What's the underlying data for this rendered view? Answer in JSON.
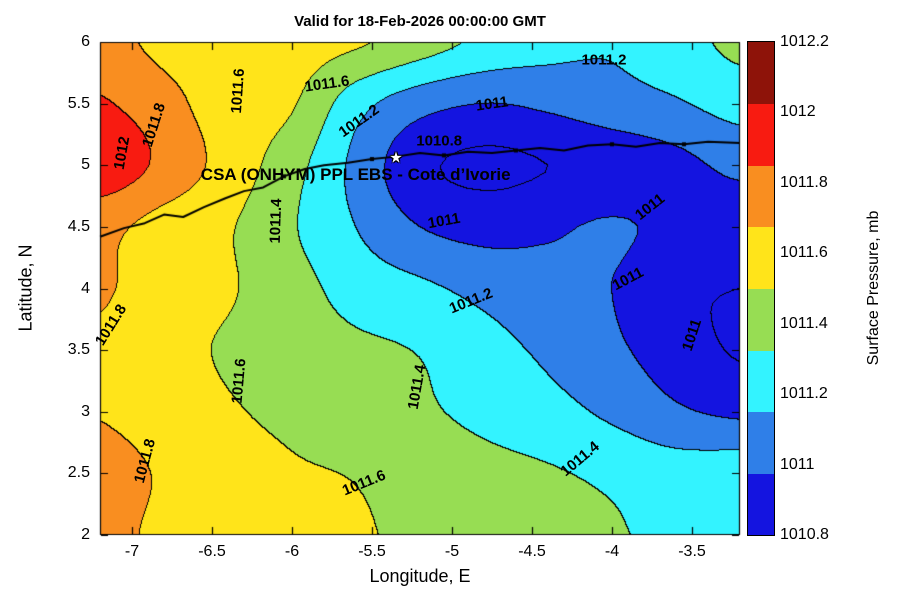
{
  "title": "Valid for 18-Feb-2026 00:00:00 GMT",
  "axes": {
    "xlabel": "Longitude, E",
    "ylabel": "Latitude, N",
    "xlim": [
      -7.2,
      -3.2
    ],
    "ylim": [
      2,
      6
    ],
    "xticks": [
      -7,
      -6.5,
      -6,
      -5.5,
      -5,
      -4.5,
      -4,
      -3.5
    ],
    "xtick_labels": [
      "-7",
      "-6.5",
      "-6",
      "-5.5",
      "-5",
      "-4.5",
      "-4",
      "-3.5"
    ],
    "yticks": [
      2,
      2.5,
      3,
      3.5,
      4,
      4.5,
      5,
      5.5,
      6
    ],
    "ytick_labels": [
      "2",
      "2.5",
      "3",
      "3.5",
      "4",
      "4.5",
      "5",
      "5.5",
      "6"
    ]
  },
  "colorbar": {
    "label": "Surface Pressure, mb",
    "ticks": [
      {
        "label": "1012.2",
        "value": 1012.2
      },
      {
        "label": "1012",
        "value": 1012.0
      },
      {
        "label": "1011.8",
        "value": 1011.8
      },
      {
        "label": "1011.6",
        "value": 1011.6
      },
      {
        "label": "1011.4",
        "value": 1011.4
      },
      {
        "label": "1011.2",
        "value": 1011.2
      },
      {
        "label": "1011",
        "value": 1011.0
      },
      {
        "label": "1010.8",
        "value": 1010.8
      }
    ]
  },
  "chart_data": {
    "type": "heatmap",
    "style": "filled-contour",
    "units": "mb",
    "title": "Valid for 18-Feb-2026 00:00:00 GMT",
    "xlabel": "Longitude, E",
    "ylabel": "Latitude, N",
    "levels": [
      1010.8,
      1011,
      1011.2,
      1011.4,
      1011.6,
      1011.8,
      1012,
      1012.2
    ],
    "band_colors_bottom_up": [
      "#1414e0",
      "#2f7fe8",
      "#33f3ff",
      "#97dd53",
      "#ffe41a",
      "#f98e20",
      "#f81b11",
      "#8e1309"
    ],
    "lon": [
      -7.2,
      -6.8,
      -6.4,
      -6.0,
      -5.6,
      -5.2,
      -4.8,
      -4.4,
      -4.0,
      -3.6,
      -3.2
    ],
    "lat_top_to_bottom": [
      6,
      5.5,
      5,
      4.5,
      4,
      3.5,
      3,
      2.5,
      2
    ],
    "pressure_grid_top_to_bottom": [
      [
        1011.88,
        1011.74,
        1011.64,
        1011.68,
        1011.63,
        1011.5,
        1011.36,
        1011.27,
        1011.22,
        1011.32,
        1011.45
      ],
      [
        1012.02,
        1011.88,
        1011.68,
        1011.62,
        1011.28,
        1011.08,
        1011.0,
        1011.04,
        1011.12,
        1011.18,
        1011.28
      ],
      [
        1012.14,
        1011.95,
        1011.72,
        1011.48,
        1011.15,
        1010.85,
        1010.76,
        1010.8,
        1010.86,
        1010.94,
        1011.05
      ],
      [
        1011.86,
        1011.72,
        1011.62,
        1011.42,
        1011.2,
        1011.0,
        1010.93,
        1010.97,
        1011.02,
        1010.95,
        1010.88
      ],
      [
        1011.83,
        1011.68,
        1011.62,
        1011.48,
        1011.32,
        1011.24,
        1011.14,
        1011.06,
        1011.0,
        1010.84,
        1010.8
      ],
      [
        1011.76,
        1011.66,
        1011.58,
        1011.5,
        1011.44,
        1011.39,
        1011.28,
        1011.16,
        1011.04,
        1010.9,
        1010.78
      ],
      [
        1011.79,
        1011.71,
        1011.62,
        1011.56,
        1011.5,
        1011.43,
        1011.35,
        1011.27,
        1011.16,
        1011.03,
        1010.96
      ],
      [
        1011.87,
        1011.78,
        1011.68,
        1011.62,
        1011.59,
        1011.52,
        1011.46,
        1011.42,
        1011.36,
        1011.3,
        1011.32
      ],
      [
        1011.86,
        1011.76,
        1011.7,
        1011.66,
        1011.62,
        1011.56,
        1011.5,
        1011.48,
        1011.42,
        1011.36,
        1011.38
      ]
    ],
    "contour_labels": [
      {
        "text": "1012",
        "lon": -7.06,
        "lat": 5.1,
        "rot": -80
      },
      {
        "text": "1011.8",
        "lon": -6.86,
        "lat": 5.33,
        "rot": -72
      },
      {
        "text": "1011.6",
        "lon": -6.34,
        "lat": 5.6,
        "rot": -86
      },
      {
        "text": "1011.6",
        "lon": -5.78,
        "lat": 5.66,
        "rot": -8
      },
      {
        "text": "1011.2",
        "lon": -5.58,
        "lat": 5.36,
        "rot": -35
      },
      {
        "text": "1011.2",
        "lon": -4.05,
        "lat": 5.85,
        "rot": 0
      },
      {
        "text": "1011",
        "lon": -4.75,
        "lat": 5.5,
        "rot": -8
      },
      {
        "text": "1010.8",
        "lon": -5.08,
        "lat": 5.2,
        "rot": 0
      },
      {
        "text": "1011",
        "lon": -5.05,
        "lat": 4.55,
        "rot": -10
      },
      {
        "text": "1011",
        "lon": -3.76,
        "lat": 4.66,
        "rot": -38
      },
      {
        "text": "1011",
        "lon": -3.9,
        "lat": 4.08,
        "rot": -28
      },
      {
        "text": "1011",
        "lon": -3.5,
        "lat": 3.62,
        "rot": -72
      },
      {
        "text": "1011.2",
        "lon": -4.88,
        "lat": 3.9,
        "rot": -22
      },
      {
        "text": "1011.4",
        "lon": -6.1,
        "lat": 4.55,
        "rot": -88
      },
      {
        "text": "1011.6",
        "lon": -6.33,
        "lat": 3.25,
        "rot": -85
      },
      {
        "text": "1011.8",
        "lon": -7.13,
        "lat": 3.7,
        "rot": -58
      },
      {
        "text": "1011.4",
        "lon": -5.22,
        "lat": 3.2,
        "rot": -80
      },
      {
        "text": "1011.4",
        "lon": -4.2,
        "lat": 2.62,
        "rot": -40
      },
      {
        "text": "1011.6",
        "lon": -5.55,
        "lat": 2.42,
        "rot": -22
      },
      {
        "text": "1011.8",
        "lon": -6.92,
        "lat": 2.6,
        "rot": -75
      }
    ],
    "coastline": [
      [
        -7.2,
        4.42
      ],
      [
        -7.05,
        4.49
      ],
      [
        -6.92,
        4.53
      ],
      [
        -6.8,
        4.6
      ],
      [
        -6.68,
        4.58
      ],
      [
        -6.55,
        4.66
      ],
      [
        -6.42,
        4.73
      ],
      [
        -6.3,
        4.79
      ],
      [
        -6.18,
        4.82
      ],
      [
        -6.05,
        4.91
      ],
      [
        -5.92,
        4.97
      ],
      [
        -5.8,
        5.0
      ],
      [
        -5.65,
        5.02
      ],
      [
        -5.5,
        5.05
      ],
      [
        -5.35,
        5.07
      ],
      [
        -5.2,
        5.1
      ],
      [
        -5.05,
        5.08
      ],
      [
        -4.9,
        5.11
      ],
      [
        -4.75,
        5.1
      ],
      [
        -4.6,
        5.12
      ],
      [
        -4.45,
        5.14
      ],
      [
        -4.3,
        5.12
      ],
      [
        -4.15,
        5.16
      ],
      [
        -4.0,
        5.17
      ],
      [
        -3.85,
        5.15
      ],
      [
        -3.7,
        5.18
      ],
      [
        -3.55,
        5.17
      ],
      [
        -3.4,
        5.19
      ],
      [
        -3.2,
        5.18
      ]
    ],
    "coast_dots": [
      [
        -6.05,
        4.91
      ],
      [
        -5.5,
        5.05
      ],
      [
        -5.05,
        5.08
      ],
      [
        -4.6,
        5.12
      ],
      [
        -4.0,
        5.17
      ],
      [
        -3.55,
        5.17
      ]
    ],
    "station": {
      "label": "CSA (ONHYM) PPL EBS  - Cote d’Ivorie",
      "marker_glyph": "★",
      "lon": -5.35,
      "lat": 5.06,
      "label_anchor_lon": -6.57,
      "label_anchor_lat": 4.92
    }
  }
}
